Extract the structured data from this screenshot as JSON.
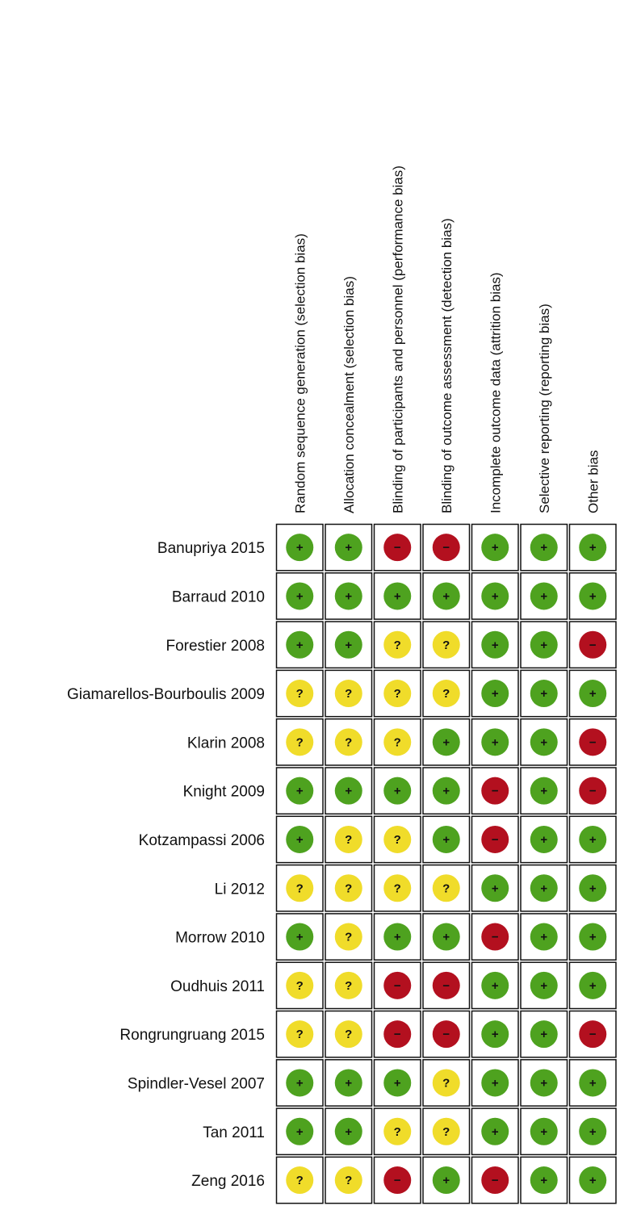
{
  "columns": [
    "Random sequence generation (selection bias)",
    "Allocation concealment (selection bias)",
    "Blinding of participants and personnel (performance bias)",
    "Blinding of outcome assessment (detection bias)",
    "Incomplete outcome data (attrition bias)",
    "Selective reporting (reporting bias)",
    "Other bias"
  ],
  "colors": {
    "+": "#4ea21f",
    "?": "#f0dc2a",
    "−": "#b3101f"
  },
  "rows": [
    {
      "label": "Banupriya 2015",
      "cells": [
        "+",
        "+",
        "−",
        "−",
        "+",
        "+",
        "+"
      ]
    },
    {
      "label": "Barraud 2010",
      "cells": [
        "+",
        "+",
        "+",
        "+",
        "+",
        "+",
        "+"
      ]
    },
    {
      "label": "Forestier 2008",
      "cells": [
        "+",
        "+",
        "?",
        "?",
        "+",
        "+",
        "−"
      ]
    },
    {
      "label": "Giamarellos-Bourboulis 2009",
      "cells": [
        "?",
        "?",
        "?",
        "?",
        "+",
        "+",
        "+"
      ]
    },
    {
      "label": "Klarin 2008",
      "cells": [
        "?",
        "?",
        "?",
        "+",
        "+",
        "+",
        "−"
      ]
    },
    {
      "label": "Knight 2009",
      "cells": [
        "+",
        "+",
        "+",
        "+",
        "−",
        "+",
        "−"
      ]
    },
    {
      "label": "Kotzampassi 2006",
      "cells": [
        "+",
        "?",
        "?",
        "+",
        "−",
        "+",
        "+"
      ]
    },
    {
      "label": "Li 2012",
      "cells": [
        "?",
        "?",
        "?",
        "?",
        "+",
        "+",
        "+"
      ]
    },
    {
      "label": "Morrow 2010",
      "cells": [
        "+",
        "?",
        "+",
        "+",
        "−",
        "+",
        "+"
      ]
    },
    {
      "label": "Oudhuis 2011",
      "cells": [
        "?",
        "?",
        "−",
        "−",
        "+",
        "+",
        "+"
      ]
    },
    {
      "label": "Rongrungruang 2015",
      "cells": [
        "?",
        "?",
        "−",
        "−",
        "+",
        "+",
        "−"
      ]
    },
    {
      "label": "Spindler-Vesel 2007",
      "cells": [
        "+",
        "+",
        "+",
        "?",
        "+",
        "+",
        "+"
      ]
    },
    {
      "label": "Tan 2011",
      "cells": [
        "+",
        "+",
        "?",
        "?",
        "+",
        "+",
        "+"
      ]
    },
    {
      "label": "Zeng 2016",
      "cells": [
        "?",
        "?",
        "−",
        "+",
        "−",
        "+",
        "+"
      ]
    }
  ]
}
